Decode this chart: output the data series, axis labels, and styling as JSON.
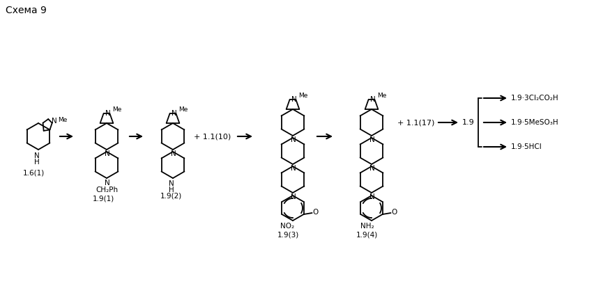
{
  "title": "Схема 9",
  "background_color": "#ffffff",
  "figsize": [
    8.75,
    4.11
  ],
  "dpi": 100,
  "labels": {
    "compound_1": "1.6(1)",
    "compound_2": "1.9(1)",
    "compound_3": "1.9(2)",
    "compound_4": "1.9(3)",
    "compound_5": "1.9(4)",
    "compound_6": "1.9",
    "reagent_1": "+ 1.1(10)",
    "reagent_2": "+ 1.1(17)",
    "salt_1": "1.9·5HCl",
    "salt_2": "1.9·5MeSO₃H",
    "salt_3": "1.9·3Cl₂CO₂H",
    "sub_ch2ph": "CH₂Ph",
    "sub_nh": "NH",
    "sub_h": "H",
    "sub_no2": "NO₂",
    "sub_nh2": "NH₂"
  },
  "line_color": "#000000",
  "text_color": "#000000",
  "font_size": 7.5
}
